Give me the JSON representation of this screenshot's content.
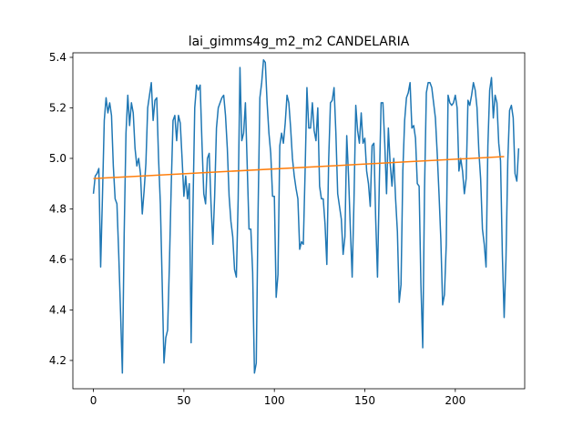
{
  "chart_data": {
    "type": "line",
    "title": "lai_gimms4g_m2_m2 CANDELARIA",
    "xlabel": "",
    "ylabel": "",
    "xlim": [
      -11.35,
      238.35
    ],
    "ylim": [
      4.088,
      5.418
    ],
    "xticks": [
      0,
      50,
      100,
      150,
      200
    ],
    "yticks": [
      4.2,
      4.4,
      4.6,
      4.8,
      5.0,
      5.2,
      5.4
    ],
    "ytick_labels": [
      "4.2",
      "4.4",
      "4.6",
      "4.8",
      "5.0",
      "5.2",
      "5.4"
    ],
    "grid": false,
    "series": [
      {
        "color": "#1f77b4",
        "values": [
          4.86,
          4.93,
          4.94,
          4.96,
          4.57,
          4.85,
          5.15,
          5.24,
          5.18,
          5.22,
          5.17,
          4.97,
          4.84,
          4.82,
          4.62,
          4.39,
          4.15,
          4.7,
          5.1,
          5.25,
          5.13,
          5.22,
          5.18,
          5.04,
          4.97,
          5.0,
          4.94,
          4.78,
          4.87,
          4.98,
          5.2,
          5.25,
          5.3,
          5.15,
          5.23,
          5.24,
          5.0,
          4.82,
          4.51,
          4.19,
          4.29,
          4.32,
          4.58,
          4.89,
          5.15,
          5.17,
          5.07,
          5.17,
          5.14,
          5.0,
          4.85,
          4.93,
          4.84,
          4.9,
          4.27,
          4.8,
          5.2,
          5.29,
          5.27,
          5.29,
          5.06,
          4.86,
          4.82,
          5.0,
          5.02,
          4.82,
          4.66,
          4.85,
          5.12,
          5.2,
          5.22,
          5.24,
          5.25,
          5.17,
          5.04,
          4.85,
          4.75,
          4.69,
          4.56,
          4.53,
          4.84,
          5.36,
          5.07,
          5.1,
          5.22,
          4.97,
          4.72,
          4.72,
          4.55,
          4.15,
          4.19,
          4.79,
          5.24,
          5.3,
          5.39,
          5.38,
          5.22,
          5.1,
          5.02,
          4.85,
          4.85,
          4.45,
          4.54,
          5.05,
          5.1,
          5.06,
          5.14,
          5.25,
          5.22,
          5.12,
          5.0,
          4.93,
          4.88,
          4.84,
          4.64,
          4.67,
          4.66,
          4.95,
          5.28,
          5.12,
          5.12,
          5.22,
          5.11,
          5.07,
          5.2,
          4.89,
          4.84,
          4.84,
          4.74,
          4.58,
          4.99,
          5.22,
          5.23,
          5.28,
          5.1,
          4.86,
          4.81,
          4.76,
          4.62,
          4.69,
          5.09,
          4.93,
          4.72,
          4.53,
          4.83,
          5.21,
          5.11,
          5.06,
          5.18,
          5.06,
          5.08,
          4.95,
          4.9,
          4.81,
          5.05,
          5.06,
          4.76,
          4.53,
          4.9,
          5.22,
          5.22,
          5.06,
          4.86,
          5.12,
          4.98,
          4.89,
          5.0,
          4.84,
          4.71,
          4.43,
          4.5,
          4.95,
          5.15,
          5.24,
          5.26,
          5.3,
          5.12,
          5.13,
          5.08,
          4.9,
          4.89,
          4.5,
          4.25,
          4.88,
          5.26,
          5.3,
          5.3,
          5.28,
          5.22,
          5.16,
          5.02,
          4.86,
          4.68,
          4.42,
          4.46,
          4.66,
          5.25,
          5.22,
          5.21,
          5.22,
          5.25,
          5.2,
          4.95,
          5.0,
          4.95,
          4.86,
          4.92,
          5.23,
          5.21,
          5.25,
          5.3,
          5.27,
          5.2,
          5.03,
          4.92,
          4.72,
          4.66,
          4.57,
          5.05,
          5.27,
          5.32,
          5.16,
          5.25,
          5.22,
          5.06,
          4.99,
          4.62,
          4.37,
          4.6,
          4.99,
          5.19,
          5.21,
          5.16,
          4.94,
          4.91,
          5.04
        ]
      },
      {
        "color": "#ff7f0e",
        "x": [
          0,
          227
        ],
        "values": [
          4.92,
          5.007
        ]
      }
    ]
  }
}
